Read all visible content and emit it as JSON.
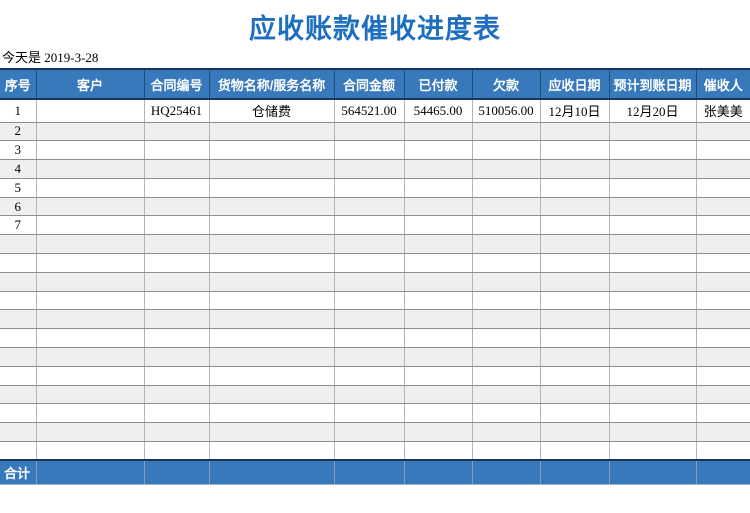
{
  "page": {
    "title": "应收账款催收进度表",
    "today_label": "今天是 2019-3-28"
  },
  "colors": {
    "title_blue": "#1E6FBF",
    "header_blue": "#3879BC",
    "dark_navy_rule": "#17375E",
    "stripe_gray": "#EFEFEF"
  },
  "table": {
    "headers": [
      "序号",
      "客户",
      "合同编号",
      "货物名称/服务名称",
      "合同金额",
      "已付款",
      "欠款",
      "应收日期",
      "预计到账日期",
      "催收人"
    ],
    "rows": [
      [
        "1",
        "",
        "HQ25461",
        "仓储费",
        "564521.00",
        "54465.00",
        "510056.00",
        "12月10日",
        "12月20日",
        "张美美"
      ],
      [
        "2",
        "",
        "",
        "",
        "",
        "",
        "",
        "",
        "",
        ""
      ],
      [
        "3",
        "",
        "",
        "",
        "",
        "",
        "",
        "",
        "",
        ""
      ],
      [
        "4",
        "",
        "",
        "",
        "",
        "",
        "",
        "",
        "",
        ""
      ],
      [
        "5",
        "",
        "",
        "",
        "",
        "",
        "",
        "",
        "",
        ""
      ],
      [
        "6",
        "",
        "",
        "",
        "",
        "",
        "",
        "",
        "",
        ""
      ],
      [
        "7",
        "",
        "",
        "",
        "",
        "",
        "",
        "",
        "",
        ""
      ],
      [
        "",
        "",
        "",
        "",
        "",
        "",
        "",
        "",
        "",
        ""
      ],
      [
        "",
        "",
        "",
        "",
        "",
        "",
        "",
        "",
        "",
        ""
      ],
      [
        "",
        "",
        "",
        "",
        "",
        "",
        "",
        "",
        "",
        ""
      ],
      [
        "",
        "",
        "",
        "",
        "",
        "",
        "",
        "",
        "",
        ""
      ],
      [
        "",
        "",
        "",
        "",
        "",
        "",
        "",
        "",
        "",
        ""
      ],
      [
        "",
        "",
        "",
        "",
        "",
        "",
        "",
        "",
        "",
        ""
      ],
      [
        "",
        "",
        "",
        "",
        "",
        "",
        "",
        "",
        "",
        ""
      ],
      [
        "",
        "",
        "",
        "",
        "",
        "",
        "",
        "",
        "",
        ""
      ],
      [
        "",
        "",
        "",
        "",
        "",
        "",
        "",
        "",
        "",
        ""
      ],
      [
        "",
        "",
        "",
        "",
        "",
        "",
        "",
        "",
        "",
        ""
      ],
      [
        "",
        "",
        "",
        "",
        "",
        "",
        "",
        "",
        "",
        ""
      ],
      [
        "",
        "",
        "",
        "",
        "",
        "",
        "",
        "",
        "",
        ""
      ]
    ],
    "footer_label": "合计"
  }
}
